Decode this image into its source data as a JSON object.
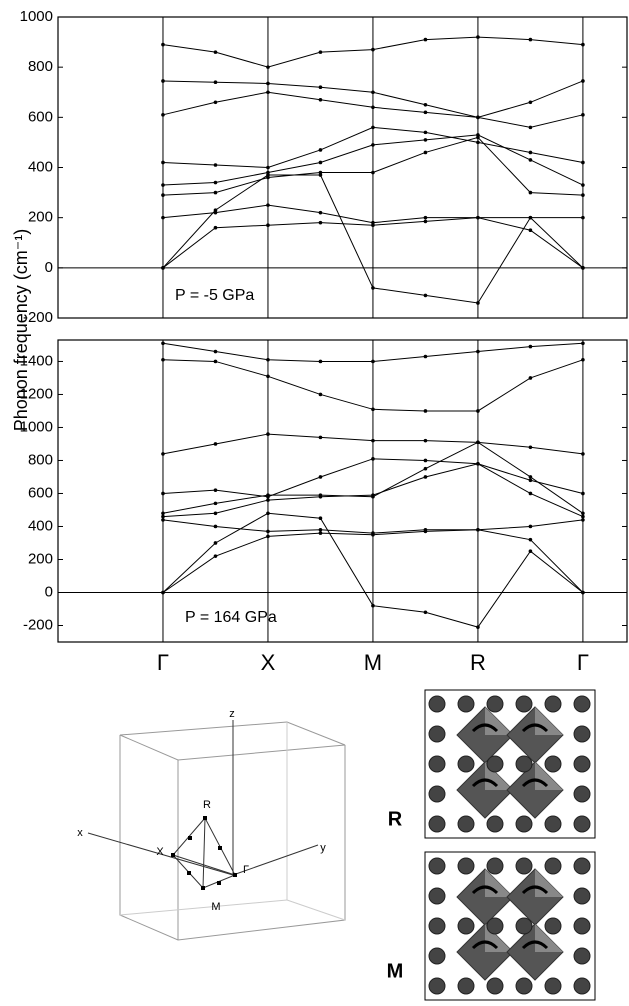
{
  "y_label": "Phonon frequency (cm⁻¹)",
  "chart_data": [
    {
      "type": "line",
      "annotation": "P = -5 GPa",
      "x": [
        0,
        0.5,
        1,
        1.5,
        2,
        2.5,
        3,
        3.5,
        4
      ],
      "xlim": [
        -1,
        4.42
      ],
      "ylim": [
        -200,
        1000
      ],
      "yticks": [
        -200,
        0,
        200,
        400,
        600,
        800,
        1000
      ],
      "series": [
        {
          "color": "#000000",
          "values": [
            890,
            860,
            800,
            860,
            870,
            910,
            920,
            910,
            890
          ]
        },
        {
          "color": "#000000",
          "values": [
            745,
            740,
            735,
            720,
            700,
            650,
            600,
            660,
            745
          ]
        },
        {
          "color": "#000000",
          "values": [
            610,
            660,
            700,
            670,
            640,
            620,
            600,
            560,
            610
          ]
        },
        {
          "color": "#000000",
          "values": [
            420,
            410,
            400,
            470,
            560,
            540,
            500,
            460,
            420
          ]
        },
        {
          "color": "#000000",
          "values": [
            330,
            340,
            380,
            420,
            490,
            510,
            530,
            430,
            330
          ]
        },
        {
          "color": "#000000",
          "values": [
            290,
            300,
            360,
            380,
            380,
            460,
            520,
            300,
            290
          ]
        },
        {
          "color": "#000000",
          "values": [
            200,
            220,
            250,
            220,
            180,
            200,
            200,
            200,
            200
          ]
        },
        {
          "color": "#000000",
          "values": [
            0,
            160,
            170,
            180,
            170,
            185,
            200,
            150,
            0
          ]
        },
        {
          "color": "#000000",
          "values": [
            0,
            230,
            370,
            370,
            -80,
            -110,
            -140,
            200,
            0
          ]
        }
      ]
    },
    {
      "type": "line",
      "annotation": "P = 164 GPa",
      "x": [
        0,
        0.5,
        1,
        1.5,
        2,
        2.5,
        3,
        3.5,
        4
      ],
      "xlim": [
        -1,
        4.42
      ],
      "ylim": [
        -300,
        1530
      ],
      "yticks": [
        -200,
        0,
        200,
        400,
        600,
        800,
        1000,
        1200,
        1400
      ],
      "xticks": [
        {
          "value": 0,
          "label": "Γ"
        },
        {
          "value": 1,
          "label": "X"
        },
        {
          "value": 2,
          "label": "M"
        },
        {
          "value": 3,
          "label": "R"
        },
        {
          "value": 4,
          "label": "Γ"
        }
      ],
      "series": [
        {
          "color": "#000000",
          "values": [
            1510,
            1460,
            1410,
            1400,
            1400,
            1430,
            1460,
            1490,
            1510
          ]
        },
        {
          "color": "#000000",
          "values": [
            1410,
            1400,
            1310,
            1200,
            1110,
            1100,
            1100,
            1300,
            1410
          ]
        },
        {
          "color": "#000000",
          "values": [
            840,
            900,
            960,
            940,
            920,
            920,
            910,
            880,
            840
          ]
        },
        {
          "color": "#000000",
          "values": [
            600,
            620,
            580,
            700,
            810,
            800,
            780,
            680,
            600
          ]
        },
        {
          "color": "#000000",
          "values": [
            480,
            540,
            590,
            590,
            580,
            750,
            910,
            700,
            480
          ]
        },
        {
          "color": "#000000",
          "values": [
            460,
            480,
            560,
            580,
            590,
            700,
            780,
            600,
            460
          ]
        },
        {
          "color": "#000000",
          "values": [
            440,
            400,
            370,
            380,
            360,
            380,
            380,
            400,
            440
          ]
        },
        {
          "color": "#000000",
          "values": [
            0,
            220,
            340,
            360,
            350,
            370,
            380,
            320,
            0
          ]
        },
        {
          "color": "#000000",
          "values": [
            0,
            300,
            480,
            450,
            -80,
            -120,
            -210,
            250,
            0
          ]
        }
      ]
    }
  ],
  "brillouin_zone": {
    "labels": [
      "z",
      "x",
      "y",
      "R",
      "X",
      "Γ",
      "M"
    ]
  },
  "structures": [
    "R",
    "M"
  ]
}
